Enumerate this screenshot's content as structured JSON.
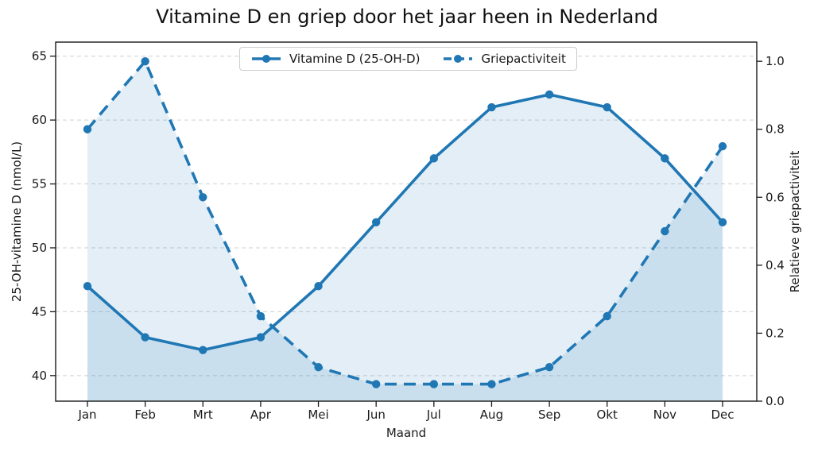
{
  "chart_data": {
    "type": "line",
    "title": "Vitamine D en griep door het jaar heen in Nederland",
    "xlabel": "Maand",
    "ylabel_left": "25-OH-vitamine D (nmol/L)",
    "ylabel_right": "Relatieve griepactiviteit",
    "categories": [
      "Jan",
      "Feb",
      "Mrt",
      "Apr",
      "Mei",
      "Jun",
      "Jul",
      "Aug",
      "Sep",
      "Okt",
      "Nov",
      "Dec"
    ],
    "series": [
      {
        "name": "Vitamine D (25-OH-D)",
        "axis": "left",
        "line_style": "solid",
        "marker": "circle",
        "values": [
          47,
          43,
          42,
          43,
          47,
          52,
          57,
          61,
          62,
          61,
          57,
          52
        ]
      },
      {
        "name": "Griepactiviteit",
        "axis": "right",
        "line_style": "dashed",
        "marker": "circle",
        "values": [
          0.8,
          1.0,
          0.6,
          0.25,
          0.1,
          0.05,
          0.05,
          0.05,
          0.1,
          0.25,
          0.5,
          0.75
        ]
      }
    ],
    "yticks_left": [
      40,
      45,
      50,
      55,
      60,
      65
    ],
    "yticks_right": [
      0.0,
      0.2,
      0.4,
      0.6,
      0.8,
      1.0
    ],
    "ylim_left": [
      38.0,
      66.1
    ],
    "ylim_right": [
      0.0,
      1.0565
    ],
    "grid": true,
    "legend_position": "upper center",
    "area_fill": "both series filled to baseline, translucent",
    "colors": {
      "series": "#1f77b4",
      "grid": "#d0d0d0",
      "spine": "#1a1a1a",
      "text": "#1a1a1a",
      "legend_border": "#cccccc",
      "fill_opacity": 0.125
    }
  }
}
